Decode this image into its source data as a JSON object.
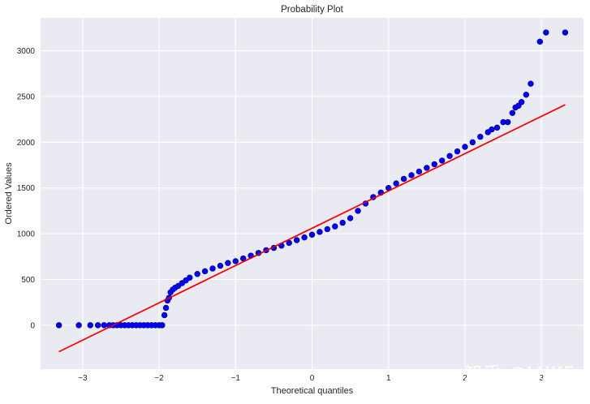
{
  "chart_data": {
    "type": "scatter",
    "title": "Probability Plot",
    "xlabel": "Theoretical quantiles",
    "ylabel": "Ordered Values",
    "xlim": [
      -3.55,
      3.55
    ],
    "ylim": [
      -480,
      3360
    ],
    "xticks": [
      -3,
      -2,
      -1,
      0,
      1,
      2,
      3
    ],
    "yticks": [
      0,
      500,
      1000,
      1500,
      2000,
      2500,
      3000
    ],
    "grid": true,
    "background": "#eaeaf2",
    "marker_color": "#0000ff",
    "marker_edge_color": "#00007f",
    "line_color": "#ff0000",
    "fit_line": {
      "x": [
        -3.31,
        3.31
      ],
      "y": [
        -290,
        2410
      ]
    },
    "points": [
      [
        -3.31,
        0
      ],
      [
        -3.05,
        0
      ],
      [
        -2.9,
        0
      ],
      [
        -2.8,
        0
      ],
      [
        -2.72,
        0
      ],
      [
        -2.65,
        0
      ],
      [
        -2.6,
        0
      ],
      [
        -2.55,
        0
      ],
      [
        -2.5,
        0
      ],
      [
        -2.45,
        0
      ],
      [
        -2.4,
        0
      ],
      [
        -2.35,
        0
      ],
      [
        -2.3,
        0
      ],
      [
        -2.25,
        0
      ],
      [
        -2.2,
        0
      ],
      [
        -2.15,
        0
      ],
      [
        -2.1,
        0
      ],
      [
        -2.05,
        0
      ],
      [
        -2.0,
        0
      ],
      [
        -1.96,
        0
      ],
      [
        -1.93,
        110
      ],
      [
        -1.91,
        190
      ],
      [
        -1.89,
        270
      ],
      [
        -1.87,
        300
      ],
      [
        -1.85,
        360
      ],
      [
        -1.82,
        390
      ],
      [
        -1.79,
        410
      ],
      [
        -1.75,
        430
      ],
      [
        -1.7,
        460
      ],
      [
        -1.65,
        490
      ],
      [
        -1.6,
        520
      ],
      [
        -1.5,
        560
      ],
      [
        -1.4,
        590
      ],
      [
        -1.3,
        620
      ],
      [
        -1.2,
        650
      ],
      [
        -1.1,
        680
      ],
      [
        -1.0,
        700
      ],
      [
        -0.9,
        730
      ],
      [
        -0.8,
        760
      ],
      [
        -0.7,
        790
      ],
      [
        -0.6,
        820
      ],
      [
        -0.5,
        845
      ],
      [
        -0.4,
        870
      ],
      [
        -0.3,
        900
      ],
      [
        -0.2,
        930
      ],
      [
        -0.1,
        960
      ],
      [
        0.0,
        990
      ],
      [
        0.1,
        1020
      ],
      [
        0.2,
        1050
      ],
      [
        0.3,
        1080
      ],
      [
        0.4,
        1120
      ],
      [
        0.5,
        1170
      ],
      [
        0.6,
        1250
      ],
      [
        0.7,
        1330
      ],
      [
        0.8,
        1400
      ],
      [
        0.9,
        1450
      ],
      [
        1.0,
        1500
      ],
      [
        1.1,
        1550
      ],
      [
        1.2,
        1600
      ],
      [
        1.3,
        1640
      ],
      [
        1.4,
        1680
      ],
      [
        1.5,
        1720
      ],
      [
        1.6,
        1760
      ],
      [
        1.7,
        1800
      ],
      [
        1.8,
        1850
      ],
      [
        1.9,
        1900
      ],
      [
        2.0,
        1950
      ],
      [
        2.1,
        2000
      ],
      [
        2.2,
        2060
      ],
      [
        2.3,
        2110
      ],
      [
        2.35,
        2140
      ],
      [
        2.42,
        2160
      ],
      [
        2.5,
        2220
      ],
      [
        2.56,
        2220
      ],
      [
        2.62,
        2320
      ],
      [
        2.66,
        2380
      ],
      [
        2.7,
        2400
      ],
      [
        2.74,
        2440
      ],
      [
        2.8,
        2520
      ],
      [
        2.86,
        2640
      ],
      [
        2.98,
        3100
      ],
      [
        3.06,
        3200
      ],
      [
        3.31,
        3200
      ]
    ]
  },
  "watermark": "知乎 @LUKE"
}
